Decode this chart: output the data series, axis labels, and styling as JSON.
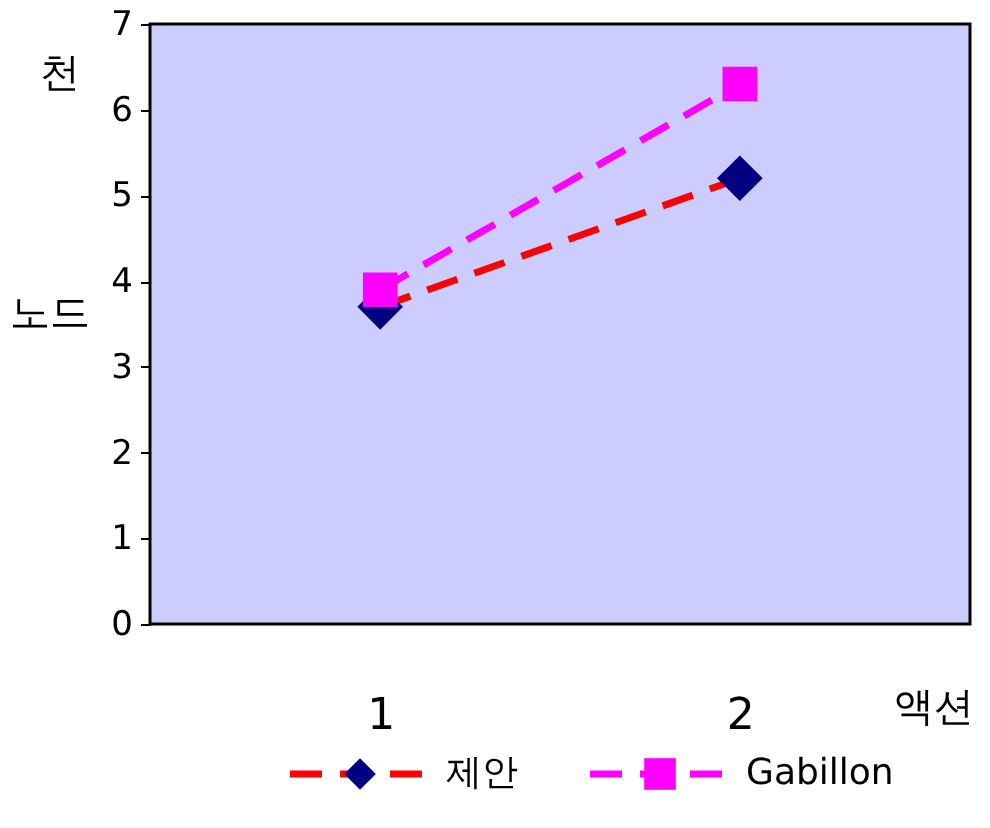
{
  "chart_data": {
    "type": "line",
    "xlabel": "액션",
    "ylabel": "천 노드",
    "categories": [
      "1",
      "2"
    ],
    "ylim": [
      0,
      7
    ],
    "yticks": [
      0,
      1,
      2,
      3,
      4,
      5,
      6,
      7
    ],
    "grid": false,
    "legend": "bottom",
    "line_style": "dashed",
    "series": [
      {
        "name": "제안",
        "color": "#ff0000",
        "colors": [
          "#000080",
          "#000080"
        ],
        "marker": "diamond",
        "values": [
          3.7,
          5.2
        ]
      },
      {
        "name": "Gabillon",
        "color": "#ff00ff",
        "colors": [
          "#ff00ff",
          "#ff00ff"
        ],
        "marker": "square",
        "values": [
          3.9,
          6.3
        ]
      }
    ]
  }
}
